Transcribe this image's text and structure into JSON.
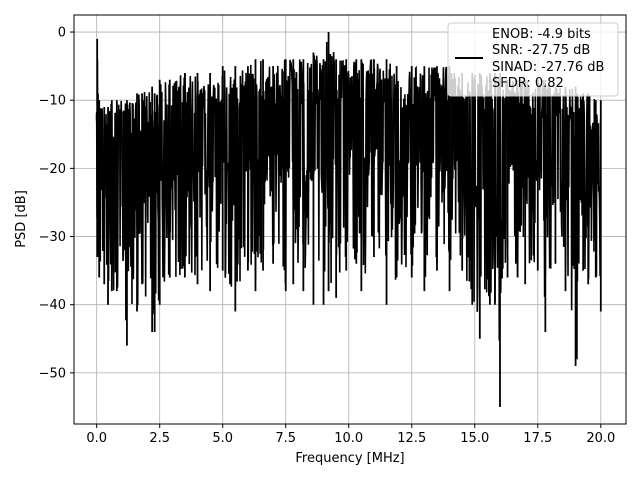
{
  "chart_data": {
    "type": "line",
    "xlabel": "Frequency [MHz]",
    "ylabel": "PSD [dB]",
    "xlim": [
      -0.9,
      21.0
    ],
    "ylim": [
      -57.5,
      2.5
    ],
    "grid": true,
    "legend_placement": "top-right",
    "line_color": "#000000",
    "x_ticks": [
      0.0,
      2.5,
      5.0,
      7.5,
      10.0,
      12.5,
      15.0,
      17.5,
      20.0
    ],
    "x_tick_labels": [
      "0.0",
      "2.5",
      "5.0",
      "7.5",
      "10.0",
      "12.5",
      "15.0",
      "17.5",
      "20.0"
    ],
    "y_ticks": [
      0,
      -10,
      -20,
      -30,
      -40,
      -50
    ],
    "y_tick_labels": [
      "0",
      "−10",
      "−20",
      "−30",
      "−40",
      "−50"
    ],
    "legend": {
      "lines": [
        "ENOB: -4.9 bits",
        "SNR: -27.75 dB",
        "SINAD: -27.76 dB",
        "SFDR: 0.82"
      ]
    },
    "series": [
      {
        "x": [
          0.0,
          0.02,
          0.05,
          0.1,
          0.3,
          0.45,
          0.6,
          0.8,
          1.2,
          1.6,
          1.8,
          2.2,
          2.3,
          2.5,
          2.9,
          3.5,
          4.0,
          4.5,
          5.0,
          5.5,
          6.0,
          6.3,
          6.6,
          7.0,
          7.5,
          7.8,
          8.2,
          8.6,
          9.0,
          9.2,
          9.5,
          9.9,
          10.3,
          10.5,
          11.0,
          11.5,
          11.9,
          12.5,
          13.0,
          13.5,
          14.0,
          14.5,
          14.9,
          15.2,
          15.6,
          15.8,
          16.0,
          16.3,
          16.7,
          17.0,
          17.5,
          17.8,
          18.2,
          18.6,
          19.0,
          19.05,
          19.3,
          19.5,
          19.8,
          20.0
        ],
        "ymax": [
          -12,
          -1,
          -9,
          -10,
          -11,
          -11,
          -10,
          -10,
          -10,
          -9,
          -9,
          -8,
          -9,
          -7,
          -7,
          -6,
          -6,
          -6,
          -5,
          -5,
          -5,
          -4,
          -4,
          -5,
          -4,
          -4,
          -4,
          -3,
          -4,
          0,
          -4,
          -4,
          -4,
          -4,
          -4,
          -4,
          -5,
          -5,
          -5,
          -5,
          -5,
          -6,
          -6,
          -6,
          -6,
          -6,
          -6,
          -7,
          -7,
          -7,
          -7,
          -7,
          -8,
          -8,
          -8,
          -9,
          -9,
          -9,
          -10,
          -10
        ],
        "ymin": [
          -13,
          -33,
          -33,
          -36,
          -37,
          -40,
          -38,
          -38,
          -46,
          -41,
          -37,
          -44,
          -44,
          -40,
          -36,
          -36,
          -37,
          -38,
          -35,
          -41,
          -35,
          -38,
          -35,
          -34,
          -38,
          -37,
          -38,
          -40,
          -40,
          -38,
          -39,
          -35,
          -34,
          -38,
          -33,
          -40,
          -36,
          -36,
          -38,
          -35,
          -38,
          -35,
          -40,
          -45,
          -40,
          -40,
          -55,
          -36,
          -36,
          -37,
          -35,
          -44,
          -34,
          -38,
          -49,
          -48,
          -35,
          -37,
          -36,
          -41
        ]
      }
    ]
  }
}
